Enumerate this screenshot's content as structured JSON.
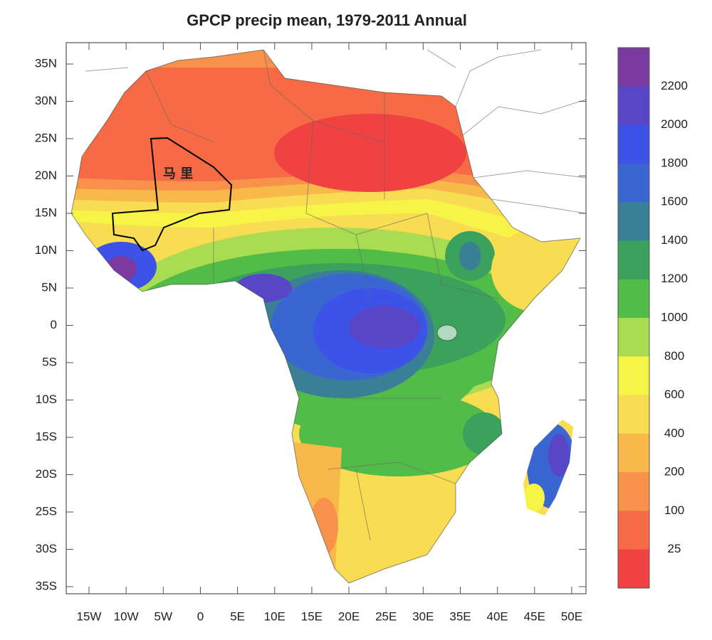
{
  "map": {
    "title": "GPCP precip mean, 1979-2011 Annual",
    "lat_labels": [
      "35N",
      "30N",
      "25N",
      "20N",
      "15N",
      "10N",
      "5N",
      "0",
      "5S",
      "10S",
      "15S",
      "20S",
      "25S",
      "30S",
      "35S"
    ],
    "lon_labels": [
      "15W",
      "10W",
      "5W",
      "0",
      "5E",
      "10E",
      "15E",
      "20E",
      "25E",
      "30E",
      "35E",
      "40E",
      "45E",
      "50E"
    ],
    "region_label": "马 里",
    "colorbar": {
      "labels": [
        2200,
        2000,
        1800,
        1600,
        1400,
        1200,
        1000,
        800,
        600,
        400,
        200,
        100,
        25
      ],
      "colors": [
        "#7a3aa0",
        "#5845c8",
        "#3d52e6",
        "#3a66d2",
        "#3a7f96",
        "#3aa25c",
        "#52bc48",
        "#aadc52",
        "#f6f446",
        "#f8dc52",
        "#f8b84a",
        "#f8924a",
        "#f66a46",
        "#f04242"
      ]
    }
  }
}
